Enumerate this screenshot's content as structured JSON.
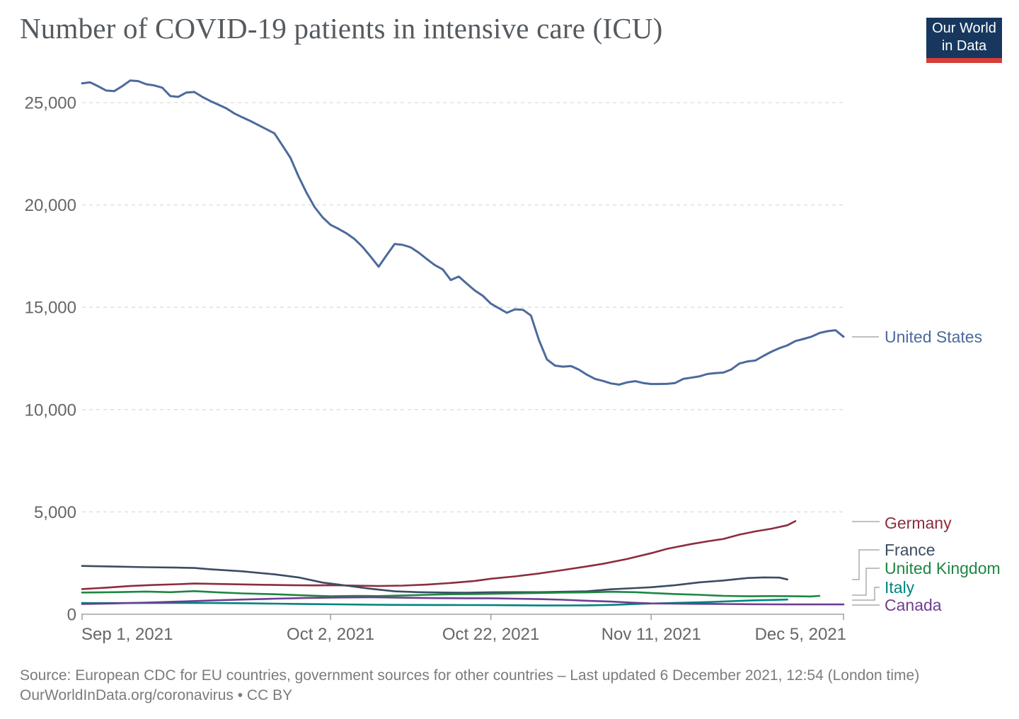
{
  "header": {
    "logo": {
      "line1": "Our World",
      "line2": "in Data",
      "bg_color": "#17375e",
      "accent_color": "#d63e38"
    }
  },
  "footer": {
    "line1": "Source: European CDC for EU countries, government sources for other countries – Last updated 6 December 2021, 12:54 (London time)",
    "line2": "OurWorldInData.org/coronavirus • CC BY"
  },
  "chart_data": {
    "type": "line",
    "title": "Number of COVID-19 patients in intensive care (ICU)",
    "grid": "horizontal-dashed",
    "legend_position": "right",
    "x_axis": {
      "unit": "date",
      "start_date": "Sep 1, 2021",
      "end_date": "Dec 5, 2021",
      "range_days": [
        0,
        95
      ],
      "ticks": [
        {
          "day": 0,
          "label": "Sep 1, 2021",
          "anchor": "start"
        },
        {
          "day": 31,
          "label": "Oct 2, 2021",
          "anchor": "middle"
        },
        {
          "day": 51,
          "label": "Oct 22, 2021",
          "anchor": "middle"
        },
        {
          "day": 71,
          "label": "Nov 11, 2021",
          "anchor": "middle"
        },
        {
          "day": 95,
          "label": "Dec 5, 2021",
          "anchor": "end"
        }
      ]
    },
    "y_axis": {
      "min": 0,
      "max": 25000,
      "ticks": [
        {
          "value": 0,
          "label": "0"
        },
        {
          "value": 5000,
          "label": "5,000"
        },
        {
          "value": 10000,
          "label": "10,000"
        },
        {
          "value": 15000,
          "label": "15,000"
        },
        {
          "value": 20000,
          "label": "20,000"
        },
        {
          "value": 25000,
          "label": "25,000"
        }
      ]
    },
    "series": [
      {
        "id": "united-states",
        "name": "United States",
        "color": "#4C6A9C",
        "points": [
          [
            0,
            25940
          ],
          [
            1,
            25990
          ],
          [
            2,
            25800
          ],
          [
            3,
            25590
          ],
          [
            4,
            25560
          ],
          [
            5,
            25800
          ],
          [
            6,
            26080
          ],
          [
            7,
            26050
          ],
          [
            8,
            25900
          ],
          [
            9,
            25840
          ],
          [
            10,
            25730
          ],
          [
            11,
            25320
          ],
          [
            12,
            25280
          ],
          [
            13,
            25490
          ],
          [
            14,
            25520
          ],
          [
            15,
            25280
          ],
          [
            16,
            25080
          ],
          [
            17,
            24900
          ],
          [
            18,
            24720
          ],
          [
            19,
            24470
          ],
          [
            20,
            24280
          ],
          [
            21,
            24100
          ],
          [
            22,
            23900
          ],
          [
            23,
            23700
          ],
          [
            24,
            23500
          ],
          [
            25,
            22900
          ],
          [
            26,
            22300
          ],
          [
            27,
            21400
          ],
          [
            28,
            20600
          ],
          [
            29,
            19900
          ],
          [
            30,
            19400
          ],
          [
            31,
            19030
          ],
          [
            32,
            18830
          ],
          [
            33,
            18610
          ],
          [
            34,
            18330
          ],
          [
            35,
            17950
          ],
          [
            36,
            17480
          ],
          [
            37,
            16980
          ],
          [
            38,
            17550
          ],
          [
            39,
            18090
          ],
          [
            40,
            18050
          ],
          [
            41,
            17930
          ],
          [
            42,
            17670
          ],
          [
            43,
            17360
          ],
          [
            44,
            17060
          ],
          [
            45,
            16850
          ],
          [
            46,
            16330
          ],
          [
            47,
            16500
          ],
          [
            48,
            16150
          ],
          [
            49,
            15820
          ],
          [
            50,
            15560
          ],
          [
            51,
            15180
          ],
          [
            52,
            14950
          ],
          [
            53,
            14730
          ],
          [
            54,
            14900
          ],
          [
            55,
            14880
          ],
          [
            56,
            14600
          ],
          [
            57,
            13400
          ],
          [
            58,
            12450
          ],
          [
            59,
            12150
          ],
          [
            60,
            12100
          ],
          [
            61,
            12130
          ],
          [
            62,
            11950
          ],
          [
            63,
            11700
          ],
          [
            64,
            11500
          ],
          [
            65,
            11400
          ],
          [
            66,
            11280
          ],
          [
            67,
            11220
          ],
          [
            68,
            11330
          ],
          [
            69,
            11390
          ],
          [
            70,
            11300
          ],
          [
            71,
            11250
          ],
          [
            72,
            11250
          ],
          [
            73,
            11260
          ],
          [
            74,
            11300
          ],
          [
            75,
            11500
          ],
          [
            76,
            11560
          ],
          [
            77,
            11620
          ],
          [
            78,
            11740
          ],
          [
            79,
            11780
          ],
          [
            80,
            11810
          ],
          [
            81,
            11960
          ],
          [
            82,
            12250
          ],
          [
            83,
            12350
          ],
          [
            84,
            12400
          ],
          [
            85,
            12620
          ],
          [
            86,
            12830
          ],
          [
            87,
            13000
          ],
          [
            88,
            13140
          ],
          [
            89,
            13350
          ],
          [
            90,
            13450
          ],
          [
            91,
            13560
          ],
          [
            92,
            13740
          ],
          [
            93,
            13830
          ],
          [
            94,
            13880
          ],
          [
            95,
            13560
          ]
        ]
      },
      {
        "id": "germany",
        "name": "Germany",
        "color": "#8C2D3E",
        "points": [
          [
            0,
            1230
          ],
          [
            3,
            1300
          ],
          [
            6,
            1380
          ],
          [
            9,
            1430
          ],
          [
            12,
            1470
          ],
          [
            14,
            1500
          ],
          [
            17,
            1480
          ],
          [
            20,
            1460
          ],
          [
            23,
            1440
          ],
          [
            26,
            1420
          ],
          [
            29,
            1410
          ],
          [
            31,
            1420
          ],
          [
            34,
            1400
          ],
          [
            37,
            1380
          ],
          [
            40,
            1400
          ],
          [
            43,
            1450
          ],
          [
            46,
            1530
          ],
          [
            49,
            1630
          ],
          [
            51,
            1735
          ],
          [
            54,
            1850
          ],
          [
            57,
            1990
          ],
          [
            60,
            2160
          ],
          [
            63,
            2340
          ],
          [
            65,
            2465
          ],
          [
            68,
            2700
          ],
          [
            71,
            2985
          ],
          [
            73,
            3200
          ],
          [
            76,
            3430
          ],
          [
            78,
            3560
          ],
          [
            80,
            3680
          ],
          [
            82,
            3890
          ],
          [
            84,
            4050
          ],
          [
            86,
            4180
          ],
          [
            88,
            4350
          ],
          [
            89,
            4550
          ]
        ]
      },
      {
        "id": "france",
        "name": "France",
        "color": "#3B4C63",
        "points": [
          [
            0,
            2360
          ],
          [
            4,
            2330
          ],
          [
            8,
            2300
          ],
          [
            12,
            2280
          ],
          [
            14,
            2260
          ],
          [
            16,
            2200
          ],
          [
            20,
            2100
          ],
          [
            24,
            1950
          ],
          [
            27,
            1800
          ],
          [
            30,
            1550
          ],
          [
            32,
            1450
          ],
          [
            34,
            1350
          ],
          [
            36,
            1250
          ],
          [
            39,
            1120
          ],
          [
            42,
            1080
          ],
          [
            45,
            1060
          ],
          [
            48,
            1050
          ],
          [
            51,
            1075
          ],
          [
            54,
            1080
          ],
          [
            57,
            1080
          ],
          [
            60,
            1100
          ],
          [
            63,
            1120
          ],
          [
            66,
            1220
          ],
          [
            69,
            1280
          ],
          [
            71,
            1320
          ],
          [
            74,
            1420
          ],
          [
            77,
            1560
          ],
          [
            80,
            1650
          ],
          [
            83,
            1770
          ],
          [
            85,
            1800
          ],
          [
            87,
            1790
          ],
          [
            88,
            1700
          ]
        ]
      },
      {
        "id": "united-kingdom",
        "name": "United Kingdom",
        "color": "#1D8742",
        "points": [
          [
            0,
            1060
          ],
          [
            4,
            1080
          ],
          [
            8,
            1110
          ],
          [
            11,
            1080
          ],
          [
            14,
            1130
          ],
          [
            17,
            1070
          ],
          [
            20,
            1020
          ],
          [
            24,
            980
          ],
          [
            28,
            920
          ],
          [
            31,
            880
          ],
          [
            34,
            900
          ],
          [
            37,
            890
          ],
          [
            40,
            920
          ],
          [
            43,
            950
          ],
          [
            46,
            980
          ],
          [
            49,
            990
          ],
          [
            51,
            1000
          ],
          [
            54,
            1020
          ],
          [
            57,
            1040
          ],
          [
            60,
            1060
          ],
          [
            63,
            1070
          ],
          [
            66,
            1100
          ],
          [
            69,
            1080
          ],
          [
            71,
            1040
          ],
          [
            74,
            990
          ],
          [
            77,
            950
          ],
          [
            80,
            900
          ],
          [
            83,
            880
          ],
          [
            86,
            890
          ],
          [
            89,
            880
          ],
          [
            91,
            870
          ],
          [
            92,
            900
          ]
        ]
      },
      {
        "id": "italy",
        "name": "Italy",
        "color": "#00847E",
        "points": [
          [
            0,
            550
          ],
          [
            4,
            545
          ],
          [
            8,
            550
          ],
          [
            12,
            558
          ],
          [
            16,
            550
          ],
          [
            20,
            538
          ],
          [
            24,
            518
          ],
          [
            28,
            498
          ],
          [
            32,
            483
          ],
          [
            36,
            468
          ],
          [
            40,
            458
          ],
          [
            44,
            452
          ],
          [
            48,
            448
          ],
          [
            51,
            445
          ],
          [
            54,
            438
          ],
          [
            57,
            430
          ],
          [
            60,
            428
          ],
          [
            63,
            435
          ],
          [
            66,
            455
          ],
          [
            69,
            500
          ],
          [
            72,
            535
          ],
          [
            75,
            565
          ],
          [
            78,
            595
          ],
          [
            81,
            640
          ],
          [
            84,
            680
          ],
          [
            86,
            700
          ],
          [
            88,
            720
          ]
        ]
      },
      {
        "id": "canada",
        "name": "Canada",
        "color": "#6D3E91",
        "points": [
          [
            0,
            500
          ],
          [
            4,
            530
          ],
          [
            8,
            570
          ],
          [
            12,
            620
          ],
          [
            16,
            670
          ],
          [
            20,
            720
          ],
          [
            24,
            760
          ],
          [
            28,
            800
          ],
          [
            32,
            820
          ],
          [
            36,
            830
          ],
          [
            40,
            810
          ],
          [
            44,
            790
          ],
          [
            48,
            780
          ],
          [
            51,
            780
          ],
          [
            54,
            760
          ],
          [
            57,
            740
          ],
          [
            60,
            710
          ],
          [
            63,
            660
          ],
          [
            66,
            620
          ],
          [
            69,
            560
          ],
          [
            71,
            530
          ],
          [
            74,
            520
          ],
          [
            77,
            510
          ],
          [
            80,
            500
          ],
          [
            83,
            490
          ],
          [
            86,
            485
          ],
          [
            89,
            480
          ],
          [
            92,
            480
          ],
          [
            95,
            480
          ]
        ]
      }
    ]
  }
}
